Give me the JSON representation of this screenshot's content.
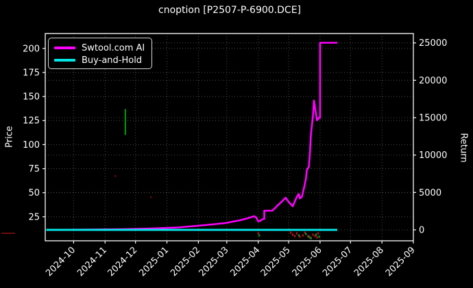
{
  "window": {
    "title": "cnoption [P2507-P-6900.DCE]"
  },
  "colors": {
    "background": "#000000",
    "foreground": "#ffffff",
    "grid": "#4d4d4d",
    "strategy_line": "#ff00ff",
    "buyhold_line": "#00e5e5",
    "price_spike": "#00a000",
    "scatter_red": "#c41414",
    "scatter_green": "#00a028",
    "faint_red": "#7a0e0e"
  },
  "legend": {
    "items": [
      {
        "label": "Swtool.com AI",
        "color": "#ff00ff"
      },
      {
        "label": "Buy-and-Hold",
        "color": "#00e5e5"
      }
    ]
  },
  "chart_data": {
    "type": "line",
    "title": "cnoption [P2507-P-6900.DCE]",
    "grid": true,
    "legend_position": "upper left",
    "left_axis": {
      "label": "Price",
      "ticks": [
        25,
        50,
        75,
        100,
        125,
        150,
        175,
        200
      ],
      "range": [
        0,
        215.5
      ]
    },
    "right_axis": {
      "label": "Return",
      "ticks": [
        0,
        5000,
        10000,
        15000,
        20000,
        25000
      ],
      "range": [
        -1464,
        26253
      ]
    },
    "x_axis": {
      "domain": [
        "2024-09-03",
        "2025-09-01"
      ],
      "tick_labels": [
        "2024-10",
        "2024-11",
        "2024-12",
        "2025-01",
        "2025-02",
        "2025-03",
        "2025-04",
        "2025-05",
        "2025-06",
        "2025-07",
        "2025-08",
        "2025-09"
      ]
    },
    "series": [
      {
        "name": "Swtool.com AI",
        "axis": "right",
        "color": "#ff00ff",
        "width": 2.6,
        "points": [
          [
            "2024-09-04",
            0
          ],
          [
            "2024-10-15",
            40
          ],
          [
            "2024-11-19",
            90
          ],
          [
            "2024-12-16",
            180
          ],
          [
            "2025-01-12",
            320
          ],
          [
            "2025-02-08",
            640
          ],
          [
            "2025-02-28",
            915
          ],
          [
            "2025-03-14",
            1280
          ],
          [
            "2025-03-22",
            1560
          ],
          [
            "2025-03-28",
            1830
          ],
          [
            "2025-03-30",
            1650
          ],
          [
            "2025-04-01",
            1140
          ],
          [
            "2025-04-03",
            1190
          ],
          [
            "2025-04-05",
            1420
          ],
          [
            "2025-04-07",
            1460
          ],
          [
            "2025-04-07",
            2560
          ],
          [
            "2025-04-15",
            2560
          ],
          [
            "2025-04-19",
            3110
          ],
          [
            "2025-04-24",
            3750
          ],
          [
            "2025-04-28",
            4300
          ],
          [
            "2025-05-01",
            3750
          ],
          [
            "2025-05-05",
            3160
          ],
          [
            "2025-05-07",
            3750
          ],
          [
            "2025-05-09",
            4390
          ],
          [
            "2025-05-11",
            4800
          ],
          [
            "2025-05-12",
            4210
          ],
          [
            "2025-05-14",
            4390
          ],
          [
            "2025-05-16",
            5490
          ],
          [
            "2025-05-18",
            6770
          ],
          [
            "2025-05-19",
            8050
          ],
          [
            "2025-05-21",
            8420
          ],
          [
            "2025-05-22",
            10250
          ],
          [
            "2025-05-23",
            12800
          ],
          [
            "2025-05-25",
            15190
          ],
          [
            "2025-05-26",
            17290
          ],
          [
            "2025-05-27",
            16370
          ],
          [
            "2025-05-29",
            14640
          ],
          [
            "2025-05-31",
            15000
          ],
          [
            "2025-06-01",
            15000
          ],
          [
            "2025-06-01",
            25020
          ],
          [
            "2025-06-18",
            25020
          ]
        ]
      },
      {
        "name": "Buy-and-Hold",
        "axis": "right",
        "color": "#00e5e5",
        "width": 3,
        "points": [
          [
            "2024-09-04",
            0
          ],
          [
            "2025-06-18",
            0
          ]
        ]
      }
    ],
    "price_spike": {
      "date": "2024-11-21",
      "high": 137,
      "low": 110,
      "color": "#00a000",
      "axis": "left"
    },
    "scatter": [
      {
        "date": "2025-04-01",
        "price": 7.8,
        "color": "red"
      },
      {
        "date": "2025-04-02",
        "price": 5.7,
        "color": "green"
      },
      {
        "date": "2025-05-03",
        "price": 8.5,
        "color": "red"
      },
      {
        "date": "2025-05-05",
        "price": 6.4,
        "color": "red"
      },
      {
        "date": "2025-05-07",
        "price": 5.0,
        "color": "red"
      },
      {
        "date": "2025-05-09",
        "price": 7.8,
        "color": "red"
      },
      {
        "date": "2025-05-11",
        "price": 5.7,
        "color": "green"
      },
      {
        "date": "2025-05-12",
        "price": 4.3,
        "color": "red"
      },
      {
        "date": "2025-05-15",
        "price": 5.7,
        "color": "red"
      },
      {
        "date": "2025-05-17",
        "price": 8.5,
        "color": "red"
      },
      {
        "date": "2025-05-18",
        "price": 7.1,
        "color": "green"
      },
      {
        "date": "2025-05-20",
        "price": 5.0,
        "color": "red"
      },
      {
        "date": "2025-05-21",
        "price": 4.3,
        "color": "green"
      },
      {
        "date": "2025-05-22",
        "price": 3.6,
        "color": "red"
      },
      {
        "date": "2025-05-23",
        "price": 2.8,
        "color": "green"
      },
      {
        "date": "2025-05-25",
        "price": 6.4,
        "color": "red"
      },
      {
        "date": "2025-05-27",
        "price": 5.0,
        "color": "red"
      },
      {
        "date": "2025-05-28",
        "price": 6.4,
        "color": "green"
      },
      {
        "date": "2025-05-29",
        "price": 3.6,
        "color": "red"
      },
      {
        "date": "2025-05-30",
        "price": 7.8,
        "color": "red"
      },
      {
        "date": "2025-05-31",
        "price": 4.3,
        "color": "green"
      }
    ],
    "faint_dots": [
      {
        "date": "2024-11-11",
        "price": 67.5
      },
      {
        "date": "2024-12-16",
        "price": 45.5
      }
    ],
    "artifact_dash": {
      "x": 2,
      "y": 340,
      "width": 20,
      "height": 2
    }
  }
}
